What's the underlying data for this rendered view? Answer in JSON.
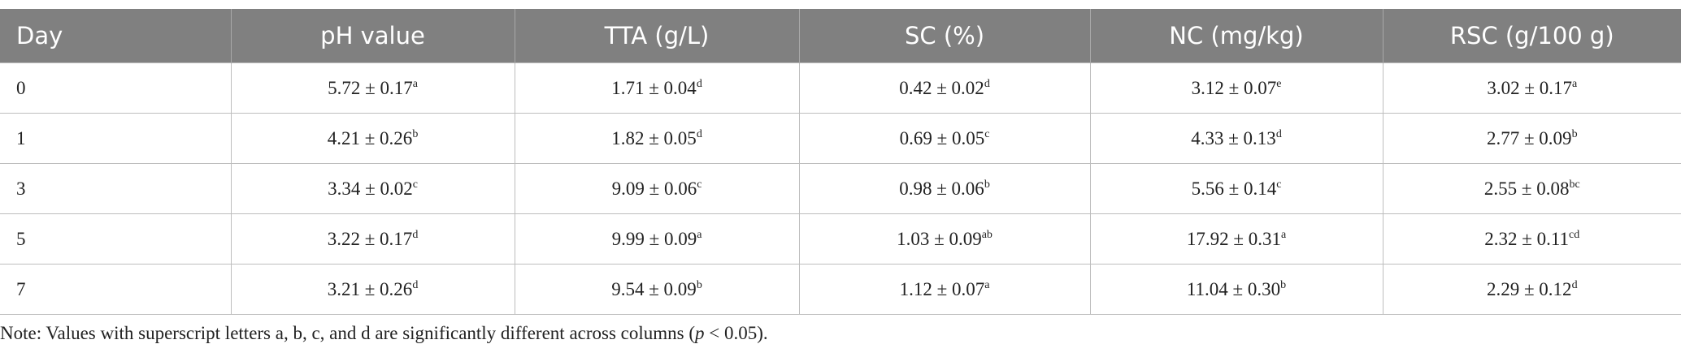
{
  "table": {
    "header": [
      "Day",
      "pH value",
      "TTA (g/L)",
      "SC (%)",
      "NC (mg/kg)",
      "RSC (g/100 g)"
    ],
    "rows": [
      [
        "0",
        {
          "value": "5.72 ± 0.17",
          "sup": "a"
        },
        {
          "value": "1.71 ± 0.04",
          "sup": "d"
        },
        {
          "value": "0.42 ± 0.02",
          "sup": "d"
        },
        {
          "value": "3.12 ± 0.07",
          "sup": "e"
        },
        {
          "value": "3.02 ± 0.17",
          "sup": "a"
        }
      ],
      [
        "1",
        {
          "value": "4.21 ± 0.26",
          "sup": "b"
        },
        {
          "value": "1.82 ± 0.05",
          "sup": "d"
        },
        {
          "value": "0.69 ± 0.05",
          "sup": "c"
        },
        {
          "value": "4.33 ± 0.13",
          "sup": "d"
        },
        {
          "value": "2.77 ± 0.09",
          "sup": "b"
        }
      ],
      [
        "3",
        {
          "value": "3.34 ± 0.02",
          "sup": "c"
        },
        {
          "value": "9.09 ± 0.06",
          "sup": "c"
        },
        {
          "value": "0.98 ± 0.06",
          "sup": "b"
        },
        {
          "value": "5.56 ± 0.14",
          "sup": "c"
        },
        {
          "value": "2.55 ± 0.08",
          "sup": "bc"
        }
      ],
      [
        "5",
        {
          "value": "3.22 ± 0.17",
          "sup": "d"
        },
        {
          "value": "9.99 ± 0.09",
          "sup": "a"
        },
        {
          "value": "1.03 ± 0.09",
          "sup": "ab"
        },
        {
          "value": "17.92 ± 0.31",
          "sup": "a"
        },
        {
          "value": "2.32 ± 0.11",
          "sup": "cd"
        }
      ],
      [
        "7",
        {
          "value": "3.21 ± 0.26",
          "sup": "d"
        },
        {
          "value": "9.54 ± 0.09",
          "sup": "b"
        },
        {
          "value": "1.12 ± 0.07",
          "sup": "a"
        },
        {
          "value": "11.04 ± 0.30",
          "sup": "b"
        },
        {
          "value": "2.29 ± 0.12",
          "sup": "d"
        }
      ]
    ]
  },
  "note": {
    "before": "Note: Values with superscript letters a, b, c, and d are significantly different across columns (",
    "italic": "p",
    "after": " < 0.05)."
  }
}
